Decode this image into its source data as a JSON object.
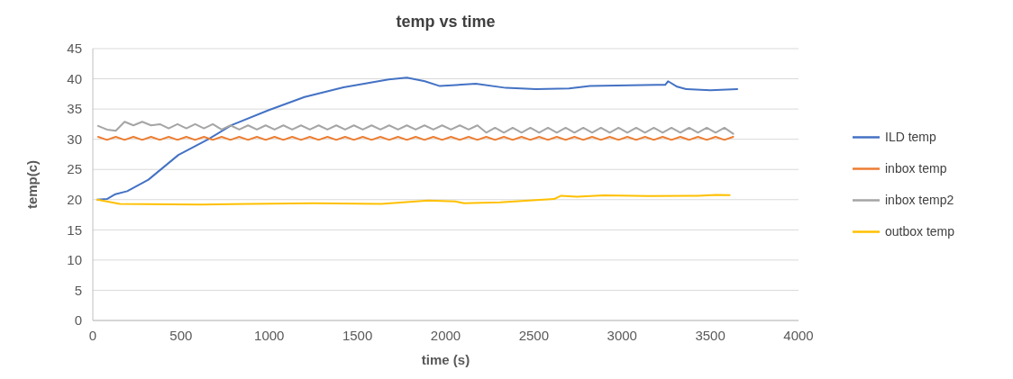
{
  "chart_data": {
    "type": "line",
    "title": "temp vs time",
    "xlabel": "time (s)",
    "ylabel": "temp(c)",
    "xlim": [
      0,
      4000
    ],
    "xticks": [
      0,
      500,
      1000,
      1500,
      2000,
      2500,
      3000,
      3500,
      4000
    ],
    "ylim": [
      0,
      45
    ],
    "yticks": [
      0,
      5,
      10,
      15,
      20,
      25,
      30,
      35,
      40,
      45
    ],
    "grid": "y",
    "legend": "right",
    "marker": "none",
    "line_style": "solid",
    "series": [
      {
        "name": "ILD temp",
        "color": "#4472c4",
        "x": [
          25,
          80,
          128,
          195,
          315,
          485,
          655,
          791,
          995,
          1200,
          1421,
          1677,
          1780,
          1882,
          1967,
          2171,
          2341,
          2512,
          2699,
          2818,
          3193,
          3244,
          3261,
          3312,
          3363,
          3500,
          3653
        ],
        "values": [
          20,
          20.1,
          20.9,
          21.4,
          23.3,
          27.4,
          30,
          32.4,
          34.8,
          37,
          38.6,
          39.9,
          40.2,
          39.6,
          38.8,
          39.2,
          38.5,
          38.3,
          38.4,
          38.8,
          39,
          39,
          39.6,
          38.7,
          38.3,
          38.1,
          38.3
        ]
      },
      {
        "name": "inbox temp",
        "color": "#ed7d31",
        "x": [
          30,
          80,
          130,
          180,
          230,
          280,
          330,
          380,
          430,
          480,
          530,
          580,
          630,
          680,
          730,
          780,
          830,
          880,
          930,
          980,
          1030,
          1080,
          1130,
          1180,
          1230,
          1280,
          1330,
          1380,
          1430,
          1480,
          1530,
          1580,
          1630,
          1680,
          1730,
          1780,
          1830,
          1880,
          1930,
          1980,
          2030,
          2080,
          2130,
          2180,
          2230,
          2280,
          2330,
          2380,
          2430,
          2480,
          2530,
          2580,
          2630,
          2680,
          2730,
          2780,
          2830,
          2880,
          2930,
          2980,
          3030,
          3080,
          3130,
          3180,
          3230,
          3280,
          3330,
          3380,
          3430,
          3480,
          3530,
          3580,
          3630
        ],
        "values": [
          30.4,
          29.9,
          30.4,
          29.9,
          30.4,
          29.9,
          30.4,
          29.9,
          30.4,
          29.9,
          30.4,
          29.9,
          30.4,
          29.9,
          30.4,
          29.9,
          30.4,
          29.9,
          30.4,
          29.9,
          30.4,
          29.9,
          30.4,
          29.9,
          30.4,
          29.9,
          30.4,
          29.9,
          30.4,
          29.9,
          30.4,
          29.9,
          30.4,
          29.9,
          30.4,
          29.9,
          30.4,
          29.9,
          30.4,
          29.9,
          30.4,
          29.9,
          30.4,
          29.9,
          30.4,
          29.9,
          30.4,
          29.9,
          30.4,
          29.9,
          30.4,
          29.9,
          30.4,
          29.9,
          30.4,
          29.9,
          30.4,
          29.9,
          30.4,
          29.9,
          30.4,
          29.9,
          30.4,
          29.9,
          30.4,
          29.9,
          30.4,
          29.9,
          30.4,
          29.9,
          30.4,
          29.9,
          30.4
        ]
      },
      {
        "name": "inbox temp2",
        "color": "#a5a5a5",
        "x": [
          30,
          80,
          130,
          180,
          230,
          280,
          330,
          380,
          430,
          480,
          530,
          580,
          630,
          680,
          730,
          780,
          830,
          880,
          930,
          980,
          1030,
          1080,
          1130,
          1180,
          1230,
          1280,
          1330,
          1380,
          1430,
          1480,
          1530,
          1580,
          1630,
          1680,
          1730,
          1780,
          1830,
          1880,
          1930,
          1980,
          2030,
          2080,
          2130,
          2180,
          2230,
          2280,
          2330,
          2380,
          2430,
          2480,
          2530,
          2580,
          2630,
          2680,
          2730,
          2780,
          2830,
          2880,
          2930,
          2980,
          3030,
          3080,
          3130,
          3180,
          3230,
          3280,
          3330,
          3380,
          3430,
          3480,
          3530,
          3580,
          3630
        ],
        "values": [
          32.2,
          31.6,
          31.4,
          32.9,
          32.3,
          32.9,
          32.3,
          32.5,
          31.8,
          32.5,
          31.8,
          32.5,
          31.8,
          32.5,
          31.6,
          32.3,
          31.6,
          32.3,
          31.6,
          32.3,
          31.6,
          32.3,
          31.6,
          32.3,
          31.6,
          32.3,
          31.6,
          32.3,
          31.6,
          32.3,
          31.6,
          32.3,
          31.6,
          32.3,
          31.6,
          32.3,
          31.6,
          32.3,
          31.6,
          32.3,
          31.6,
          32.3,
          31.6,
          32.3,
          31.1,
          31.9,
          31.1,
          31.9,
          31.1,
          31.9,
          31.1,
          31.9,
          31.1,
          31.9,
          31.1,
          31.9,
          31.1,
          31.9,
          31.1,
          31.9,
          31.1,
          31.9,
          31.1,
          31.9,
          31.1,
          31.9,
          31.1,
          31.9,
          31.1,
          31.9,
          31.1,
          31.9,
          30.9
        ]
      },
      {
        "name": "outbox temp",
        "color": "#ffc000",
        "x": [
          25,
          153,
          613,
          1252,
          1635,
          1901,
          2054,
          2105,
          2309,
          2615,
          2654,
          2744,
          2897,
          3150,
          3431,
          3533,
          3610
        ],
        "values": [
          20,
          19.3,
          19.2,
          19.4,
          19.3,
          19.85,
          19.7,
          19.4,
          19.55,
          20.1,
          20.65,
          20.5,
          20.7,
          20.6,
          20.65,
          20.8,
          20.75
        ]
      }
    ]
  }
}
